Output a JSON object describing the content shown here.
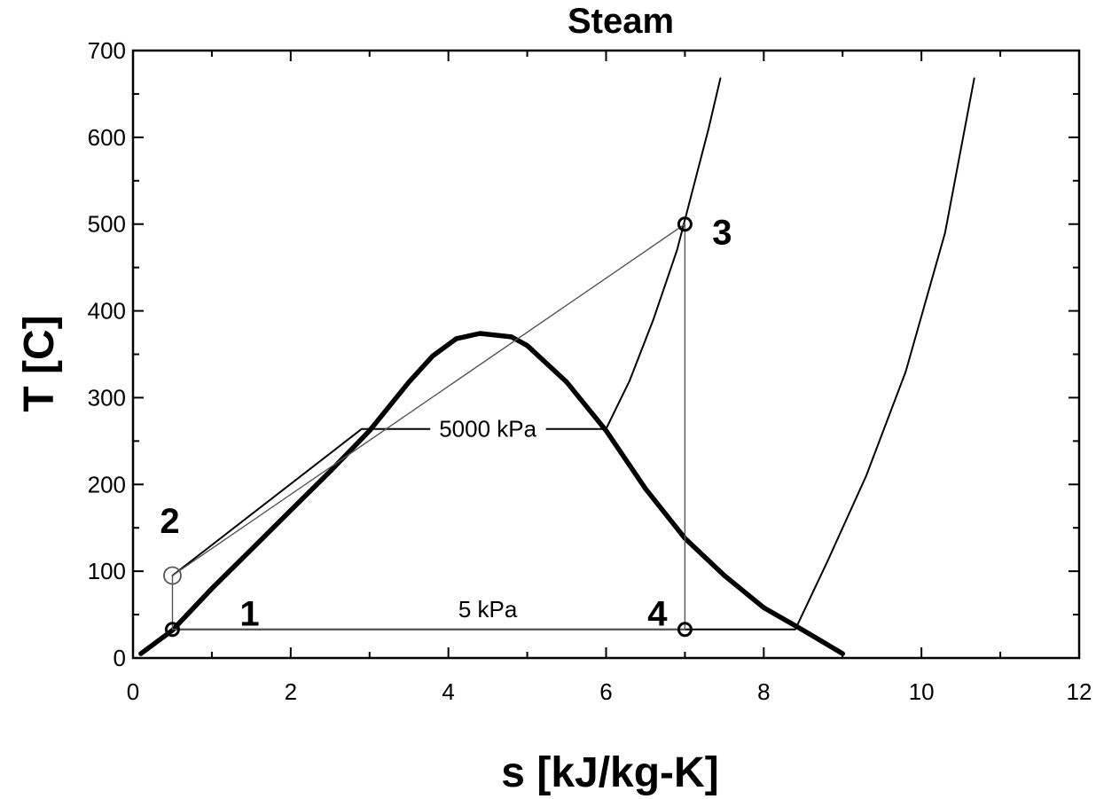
{
  "chart_data": {
    "type": "line",
    "title": "Steam",
    "xlabel": "s [kJ/kg-K]",
    "ylabel": "T [C]",
    "xlim": [
      0,
      12
    ],
    "ylim": [
      0,
      700
    ],
    "xticks": [
      0,
      2,
      4,
      6,
      8,
      10,
      12
    ],
    "xtick_labels": [
      "0",
      "2",
      "4",
      "6",
      "8",
      "10",
      "12"
    ],
    "yticks": [
      0,
      100,
      200,
      300,
      400,
      500,
      600,
      700
    ],
    "ytick_labels": [
      "0",
      "100",
      "200",
      "300",
      "400",
      "500",
      "600",
      "700"
    ],
    "grid": false,
    "colors": {
      "line": "#000000",
      "cycle": "#555555",
      "marker": "#000000"
    },
    "series": [
      {
        "role": "saturation-dome",
        "x": [
          0.1,
          0.5,
          1.0,
          1.5,
          2.0,
          2.5,
          3.0,
          3.5,
          3.8,
          4.1,
          4.4,
          4.8,
          5.0,
          5.5,
          6.0,
          6.5,
          7.0,
          7.5,
          8.0,
          8.5,
          9.0
        ],
        "y": [
          5,
          32,
          80,
          125,
          170,
          215,
          262,
          318,
          348,
          368,
          374,
          370,
          360,
          318,
          262,
          195,
          138,
          95,
          58,
          32,
          5
        ]
      },
      {
        "role": "isobar-high",
        "x": [
          0.5,
          2.9,
          6.0,
          6.3,
          6.6,
          6.9,
          7.1,
          7.3,
          7.45
        ],
        "y": [
          95,
          264,
          264,
          320,
          390,
          470,
          540,
          610,
          668
        ]
      },
      {
        "role": "isobar-low",
        "x": [
          0.5,
          8.4,
          8.8,
          9.3,
          9.8,
          10.3,
          10.67
        ],
        "y": [
          33,
          33,
          110,
          210,
          330,
          490,
          668
        ]
      },
      {
        "role": "cycle",
        "x": [
          0.5,
          0.5,
          7.0,
          7.0,
          0.5
        ],
        "y": [
          33,
          95,
          500,
          33,
          33
        ]
      }
    ],
    "state_points": [
      {
        "label": "1",
        "s": 0.5,
        "T": 33
      },
      {
        "label": "2",
        "s": 0.5,
        "T": 95
      },
      {
        "label": "3",
        "s": 7.0,
        "T": 500
      },
      {
        "label": "4",
        "s": 7.0,
        "T": 33
      }
    ],
    "annotations": [
      {
        "text": "5000 kPa",
        "s": 4.5,
        "T": 264
      },
      {
        "text": "5 kPa",
        "s": 4.5,
        "T": 56
      }
    ]
  }
}
